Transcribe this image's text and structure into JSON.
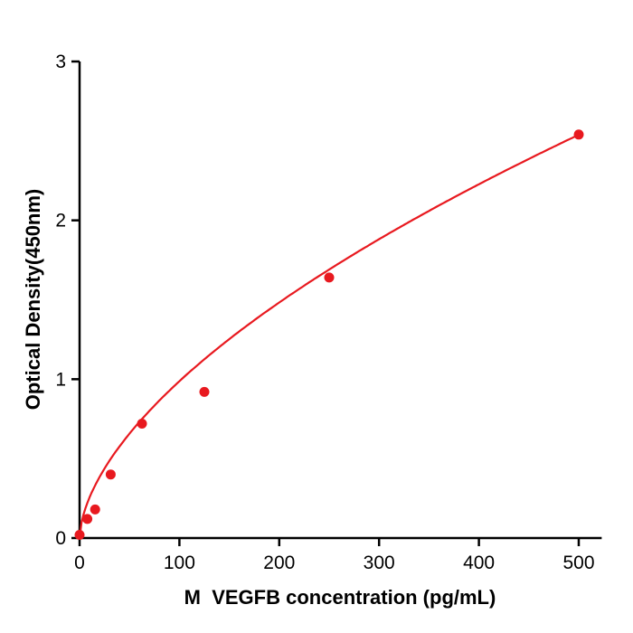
{
  "chart_data": {
    "type": "scatter",
    "title": "",
    "xlabel": "M  VEGFB concentration (pg/mL)",
    "ylabel": "Optical Density(450nm)",
    "x": [
      0,
      7.8,
      15.6,
      31.2,
      62.5,
      125,
      250,
      500
    ],
    "y": [
      0.02,
      0.12,
      0.18,
      0.4,
      0.72,
      0.92,
      1.64,
      2.54
    ],
    "x_ticks": [
      0,
      100,
      200,
      300,
      400,
      500
    ],
    "y_ticks": [
      0,
      1,
      2,
      3
    ],
    "xlim": [
      0,
      523
    ],
    "ylim": [
      0,
      3
    ],
    "grid": false,
    "legend": "none",
    "point_color": "#e8191f",
    "curve_color": "#e8191f",
    "axis_color": "#000000",
    "curve_fit": {
      "type": "power",
      "a": 0.0662,
      "b": 0.5868
    }
  }
}
